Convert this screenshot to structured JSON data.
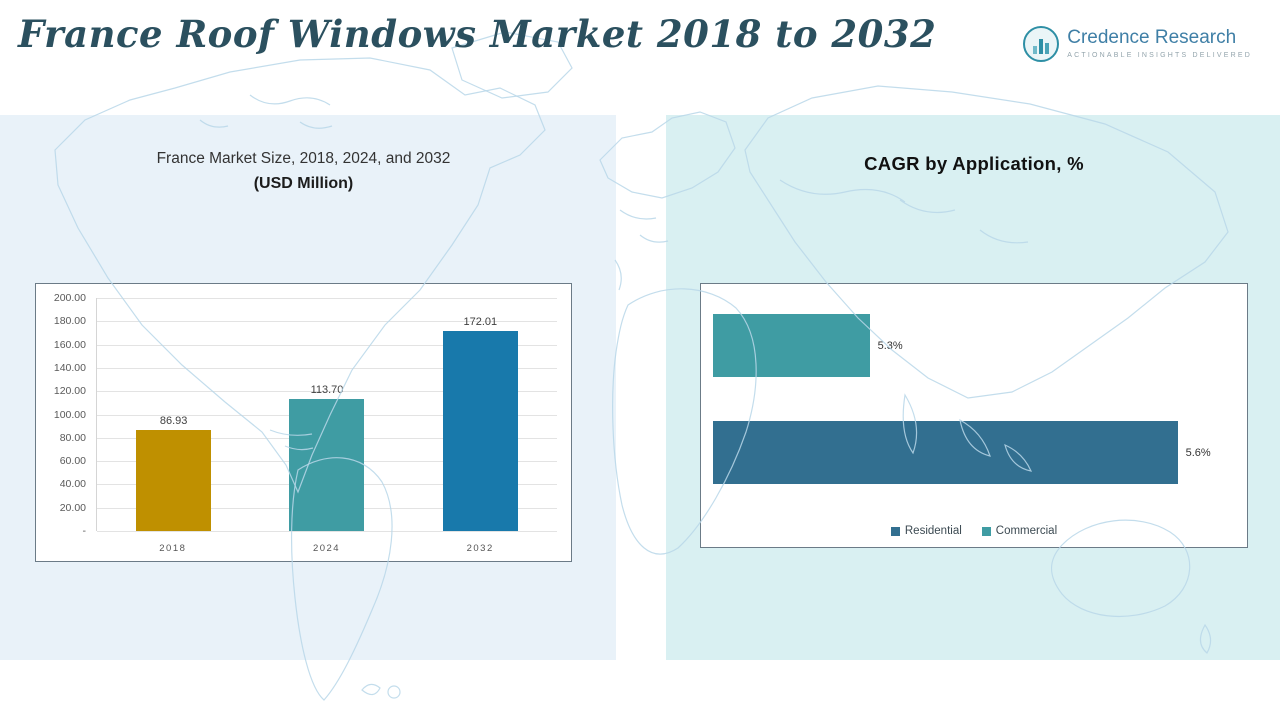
{
  "header": {
    "title": "France Roof Windows Market 2018 to 2032",
    "brand": {
      "name": "Credence Research",
      "tagline": "Actionable Insights Delivered"
    }
  },
  "left_panel": {
    "subtitle_line1": "France Market Size, 2018, 2024, and 2032",
    "subtitle_line2": "(USD Million)"
  },
  "right_panel": {
    "title": "CAGR by Application, %"
  },
  "chart_data": [
    {
      "type": "bar",
      "title": "France Market Size, 2018, 2024, and 2032 (USD Million)",
      "categories": [
        "2018",
        "2024",
        "2032"
      ],
      "values": [
        86.93,
        113.7,
        172.01
      ],
      "value_labels": [
        "86.93",
        "113.70",
        "172.01"
      ],
      "bar_colors": [
        "#bf9000",
        "#3f9ca3",
        "#1879ab"
      ],
      "ylim": [
        0,
        200
      ],
      "yticks": [
        "200.00",
        "180.00",
        "160.00",
        "140.00",
        "120.00",
        "100.00",
        "80.00",
        "60.00",
        "40.00",
        "20.00",
        "-"
      ],
      "grid": true,
      "legend_position": "none"
    },
    {
      "type": "bar-horizontal",
      "title": "CAGR by Application, %",
      "series": [
        {
          "name": "Commercial",
          "value": 5.3,
          "label": "5.3%",
          "color": "#3f9ca3",
          "length_fraction": 0.3
        },
        {
          "name": "Residential",
          "value": 5.6,
          "label": "5.6%",
          "color": "#326f90",
          "length_fraction": 0.89
        }
      ],
      "legend": [
        {
          "label": "Residential",
          "color": "#326f90"
        },
        {
          "label": "Commercial",
          "color": "#3f9ca3"
        }
      ],
      "axis_labels_hidden": true,
      "legend_position": "bottom-center"
    }
  ]
}
